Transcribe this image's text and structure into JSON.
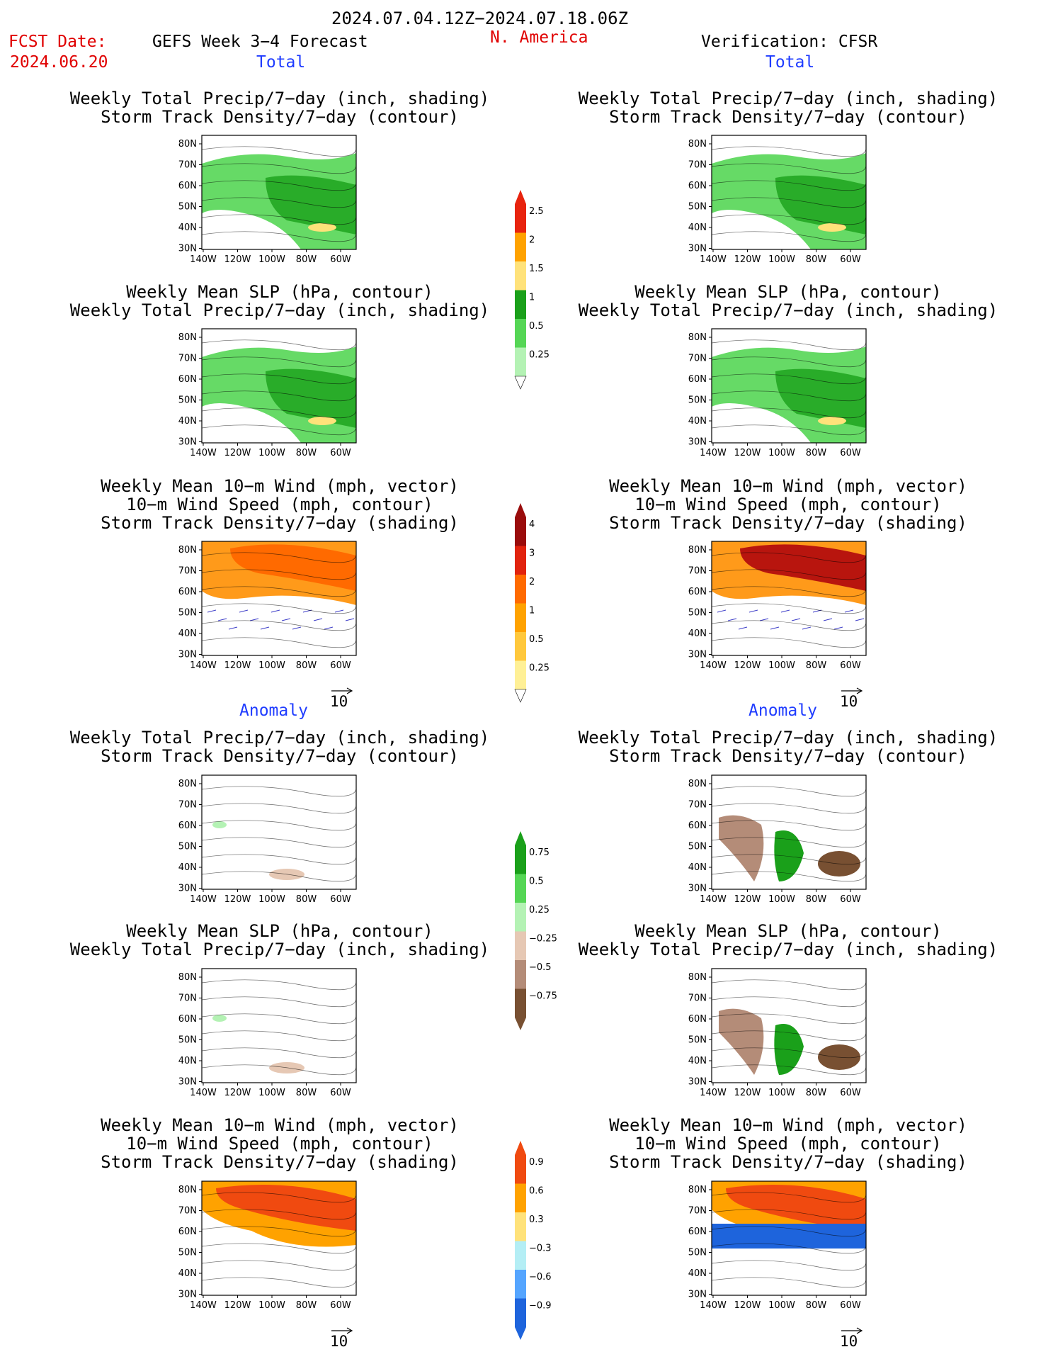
{
  "header": {
    "period": "2024.07.04.12Z−2024.07.18.06Z",
    "fcst_label": "FCST Date:",
    "fcst_date": "2024.06.20",
    "forecast_name": "GEFS Week 3−4 Forecast",
    "region": "N. America",
    "verification": "Verification: CFSR"
  },
  "sections": {
    "total": "Total",
    "anomaly": "Anomaly"
  },
  "titles": {
    "precip_storm": [
      "Weekly Total Precip/7−day (inch, shading)",
      "Storm Track Density/7−day (contour)"
    ],
    "slp_precip": [
      "Weekly Mean SLP (hPa, contour)",
      "Weekly Total Precip/7−day (inch, shading)"
    ],
    "wind_storm": [
      "Weekly Mean 10−m Wind (mph, vector)",
      "10−m Wind Speed (mph, contour)",
      "Storm Track Density/7−day (shading)"
    ]
  },
  "map_axes": {
    "lat_labels": [
      "80N",
      "70N",
      "60N",
      "50N",
      "40N",
      "30N"
    ],
    "lon_labels": [
      "140W",
      "120W",
      "100W",
      "80W",
      "60W"
    ],
    "vector_ref": "10"
  },
  "colorbars": [
    {
      "labels": [
        "2.5",
        "2",
        "1.5",
        "1",
        "0.5",
        "0.25"
      ],
      "colors": [
        "#e8230e",
        "#ffa200",
        "#ffe27a",
        "#1aa01a",
        "#55d655",
        "#b4f2b4"
      ]
    },
    {
      "labels": [
        "4",
        "3",
        "2",
        "1",
        "0.5",
        "0.25"
      ],
      "colors": [
        "#9a0c0c",
        "#e1230e",
        "#ff6a00",
        "#ffa200",
        "#ffc83c",
        "#fff096"
      ]
    },
    {
      "labels": [
        "0.75",
        "0.5",
        "0.25",
        "−0.25",
        "−0.5",
        "−0.75"
      ],
      "colors": [
        "#1aa01a",
        "#55d655",
        "#b4f2b4",
        "#e6c8b4",
        "#b48c78",
        "#785032"
      ]
    },
    {
      "labels": [
        "0.9",
        "0.6",
        "0.3",
        "−0.3",
        "−0.6",
        "−0.9"
      ],
      "colors": [
        "#f04a10",
        "#ffa200",
        "#ffe27a",
        "#b4eef5",
        "#55a5ff",
        "#1e64dc"
      ]
    }
  ],
  "panel_colors": {
    "precip_total": "#55d655",
    "wind_total": "#ff9a1a",
    "anom_dry": "#b48c78",
    "anom_wet": "#1aa01a",
    "anom_pos": "#f04a10",
    "anom_neg": "#1e64dc"
  }
}
